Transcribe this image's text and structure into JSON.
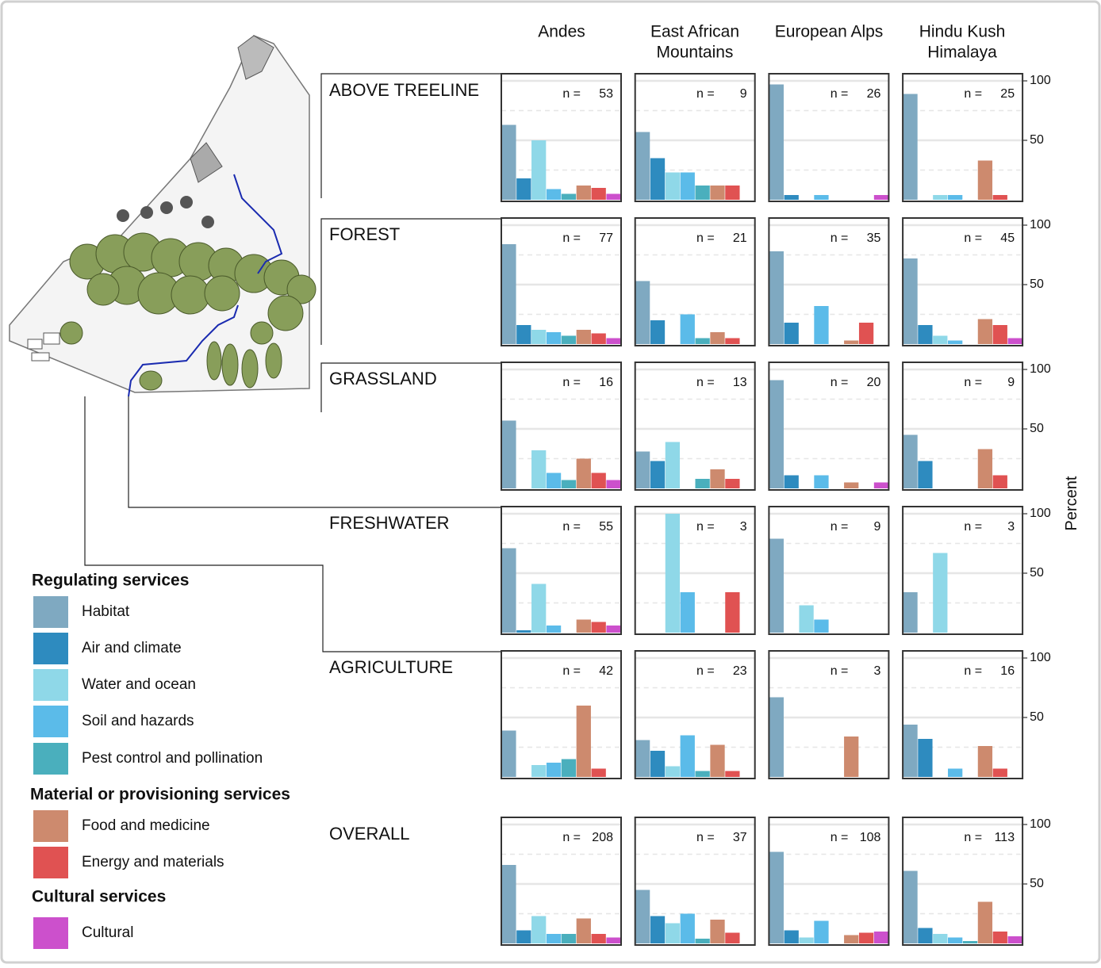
{
  "chart_data": {
    "type": "bar-grid",
    "columns": [
      [
        "Andes"
      ],
      [
        "East African",
        "Mountains"
      ],
      [
        "European Alps"
      ],
      [
        "Hindu Kush",
        "Himalaya"
      ]
    ],
    "y_label": "Percent",
    "ylim": [
      0,
      100
    ],
    "yticks": [
      50,
      100
    ],
    "minor_grid": [
      25,
      75
    ],
    "n_label": "n =",
    "groups": [
      {
        "title": "Regulating services",
        "categories": [
          {
            "name": "Habitat",
            "color": "#7fa9c1"
          },
          {
            "name": "Air and climate",
            "color": "#2e8bbf"
          },
          {
            "name": "Water and ocean",
            "color": "#8fd8e8"
          },
          {
            "name": "Soil and hazards",
            "color": "#5bbbe9"
          },
          {
            "name": "Pest control and pollination",
            "color": "#4aafbd"
          }
        ]
      },
      {
        "title": "Material or provisioning services",
        "categories": [
          {
            "name": "Food and medicine",
            "color": "#cd8a6e"
          },
          {
            "name": "Energy and materials",
            "color": "#e05252"
          }
        ]
      },
      {
        "title": "Cultural services",
        "categories": [
          {
            "name": "Cultural",
            "color": "#cc50cc"
          }
        ]
      }
    ],
    "rows": [
      {
        "name": "ABOVE TREELINE",
        "panels": [
          {
            "n": 53,
            "values": [
              63,
              18,
              50,
              9,
              5,
              12,
              10,
              5
            ]
          },
          {
            "n": 9,
            "values": [
              57,
              35,
              23,
              23,
              12,
              12,
              12,
              0
            ]
          },
          {
            "n": 26,
            "values": [
              97,
              4,
              0,
              4,
              0,
              0,
              0,
              4
            ]
          },
          {
            "n": 25,
            "values": [
              89,
              0,
              4,
              4,
              0,
              33,
              4,
              0
            ]
          }
        ]
      },
      {
        "name": "FOREST",
        "panels": [
          {
            "n": 77,
            "values": [
              84,
              16,
              12,
              10,
              7,
              12,
              9,
              5
            ]
          },
          {
            "n": 21,
            "values": [
              53,
              20,
              0,
              25,
              5,
              10,
              5,
              0
            ]
          },
          {
            "n": 35,
            "values": [
              78,
              18,
              0,
              32,
              0,
              3,
              18,
              0
            ]
          },
          {
            "n": 45,
            "values": [
              72,
              16,
              7,
              3,
              0,
              21,
              16,
              5
            ]
          }
        ]
      },
      {
        "name": "GRASSLAND",
        "panels": [
          {
            "n": 16,
            "values": [
              57,
              0,
              32,
              13,
              7,
              25,
              13,
              7
            ]
          },
          {
            "n": 13,
            "values": [
              31,
              23,
              39,
              0,
              8,
              16,
              8,
              0
            ]
          },
          {
            "n": 20,
            "values": [
              91,
              11,
              0,
              11,
              0,
              5,
              0,
              5
            ]
          },
          {
            "n": 9,
            "values": [
              45,
              23,
              0,
              0,
              0,
              33,
              11,
              0
            ]
          }
        ]
      },
      {
        "name": "FRESHWATER",
        "panels": [
          {
            "n": 55,
            "values": [
              71,
              2,
              41,
              6,
              0,
              11,
              9,
              6
            ]
          },
          {
            "n": 3,
            "values": [
              0,
              0,
              100,
              34,
              0,
              0,
              34,
              0
            ]
          },
          {
            "n": 9,
            "values": [
              79,
              0,
              23,
              11,
              0,
              0,
              0,
              0
            ]
          },
          {
            "n": 3,
            "values": [
              34,
              0,
              67,
              0,
              0,
              0,
              0,
              0
            ]
          }
        ]
      },
      {
        "name": "AGRICULTURE",
        "panels": [
          {
            "n": 42,
            "values": [
              39,
              0,
              10,
              12,
              15,
              60,
              7,
              0
            ]
          },
          {
            "n": 23,
            "values": [
              31,
              22,
              9,
              35,
              5,
              27,
              5,
              0
            ]
          },
          {
            "n": 3,
            "values": [
              67,
              0,
              0,
              0,
              0,
              34,
              0,
              0
            ]
          },
          {
            "n": 16,
            "values": [
              44,
              32,
              0,
              7,
              0,
              26,
              7,
              0
            ]
          }
        ]
      },
      {
        "name": "OVERALL",
        "panels": [
          {
            "n": 208,
            "values": [
              66,
              11,
              23,
              8,
              8,
              21,
              8,
              5
            ]
          },
          {
            "n": 37,
            "values": [
              45,
              23,
              17,
              25,
              4,
              20,
              9,
              0
            ]
          },
          {
            "n": 108,
            "values": [
              77,
              11,
              5,
              19,
              0,
              7,
              9,
              10
            ]
          },
          {
            "n": 113,
            "values": [
              61,
              13,
              8,
              5,
              2,
              35,
              10,
              6
            ]
          }
        ]
      }
    ]
  }
}
